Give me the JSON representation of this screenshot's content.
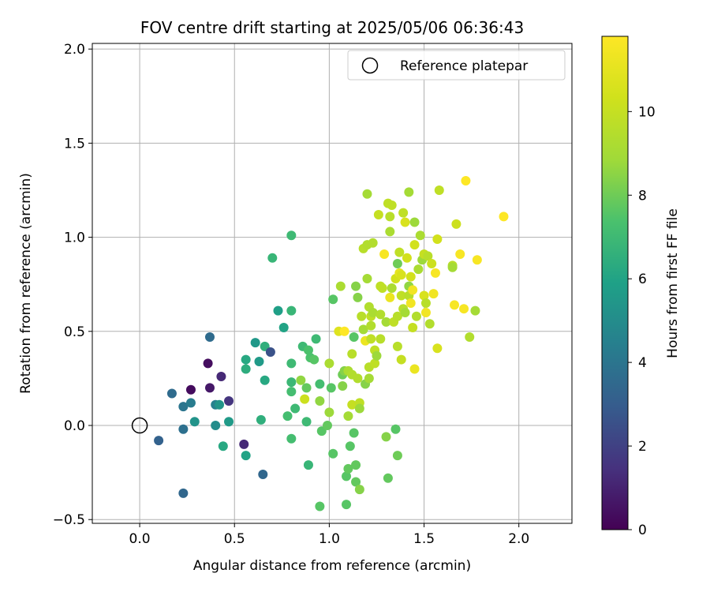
{
  "chart_data": {
    "type": "scatter",
    "title": "FOV centre drift starting at 2025/05/06 06:36:43",
    "xlabel": "Angular distance from reference (arcmin)",
    "ylabel": "Rotation from reference (arcmin)",
    "xlim": [
      -0.25,
      2.28
    ],
    "ylim": [
      -0.52,
      2.03
    ],
    "xticks": [
      "0.0",
      "0.5",
      "1.0",
      "1.5",
      "2.0"
    ],
    "yticks": [
      "−0.5",
      "0.0",
      "0.5",
      "1.0",
      "1.5",
      "2.0"
    ],
    "grid": true,
    "legend": {
      "position": "top-right",
      "label": "Reference platepar"
    },
    "reference_point": {
      "x": 0.0,
      "y": 0.0
    },
    "colorbar": {
      "label": "Hours from first FF file",
      "range": [
        0,
        11.8
      ],
      "ticks": [
        "0",
        "2",
        "4",
        "6",
        "8",
        "10"
      ],
      "colormap": "viridis"
    },
    "points": [
      [
        0.1,
        -0.08,
        3.2
      ],
      [
        0.17,
        0.17,
        3.6
      ],
      [
        0.23,
        0.1,
        4.0
      ],
      [
        0.23,
        -0.02,
        3.8
      ],
      [
        0.23,
        -0.36,
        3.4
      ],
      [
        0.27,
        0.19,
        0.3
      ],
      [
        0.27,
        0.12,
        4.3
      ],
      [
        0.29,
        0.02,
        5.3
      ],
      [
        0.36,
        0.33,
        0.4
      ],
      [
        0.37,
        0.2,
        0.7
      ],
      [
        0.37,
        0.47,
        3.6
      ],
      [
        0.4,
        0.11,
        4.5
      ],
      [
        0.4,
        0.0,
        5.0
      ],
      [
        0.42,
        0.11,
        5.4
      ],
      [
        0.43,
        0.26,
        1.2
      ],
      [
        0.44,
        -0.11,
        6.2
      ],
      [
        0.47,
        0.13,
        1.6
      ],
      [
        0.47,
        0.02,
        5.6
      ],
      [
        0.55,
        -0.1,
        1.2
      ],
      [
        0.56,
        0.35,
        6.2
      ],
      [
        0.56,
        0.3,
        6.4
      ],
      [
        0.56,
        -0.16,
        6.0
      ],
      [
        0.61,
        0.44,
        5.5
      ],
      [
        0.63,
        0.34,
        5.6
      ],
      [
        0.64,
        0.03,
        6.5
      ],
      [
        0.65,
        -0.26,
        3.4
      ],
      [
        0.66,
        0.42,
        6.5
      ],
      [
        0.66,
        0.24,
        6.2
      ],
      [
        0.69,
        0.39,
        2.6
      ],
      [
        0.7,
        0.89,
        6.8
      ],
      [
        0.73,
        0.61,
        5.8
      ],
      [
        0.76,
        0.52,
        6.0
      ],
      [
        0.78,
        0.05,
        7.2
      ],
      [
        0.8,
        1.01,
        7.0
      ],
      [
        0.8,
        0.61,
        6.8
      ],
      [
        0.8,
        0.33,
        7.0
      ],
      [
        0.8,
        0.23,
        6.9
      ],
      [
        0.8,
        0.18,
        7.2
      ],
      [
        0.8,
        -0.07,
        7.2
      ],
      [
        0.82,
        0.09,
        7.0
      ],
      [
        0.85,
        0.24,
        8.6
      ],
      [
        0.86,
        0.42,
        7.0
      ],
      [
        0.87,
        0.14,
        10.2
      ],
      [
        0.88,
        0.02,
        7.0
      ],
      [
        0.88,
        0.2,
        7.8
      ],
      [
        0.89,
        -0.21,
        6.8
      ],
      [
        0.89,
        0.4,
        7.4
      ],
      [
        0.9,
        0.36,
        7.4
      ],
      [
        0.92,
        0.35,
        7.6
      ],
      [
        0.93,
        0.46,
        7.0
      ],
      [
        0.95,
        0.22,
        7.2
      ],
      [
        0.95,
        -0.43,
        7.6
      ],
      [
        0.95,
        0.13,
        8.6
      ],
      [
        0.96,
        -0.03,
        7.6
      ],
      [
        0.99,
        0.0,
        7.8
      ],
      [
        1.0,
        0.33,
        9.2
      ],
      [
        1.0,
        0.07,
        8.8
      ],
      [
        1.01,
        0.2,
        7.6
      ],
      [
        1.02,
        0.67,
        7.6
      ],
      [
        1.02,
        -0.15,
        7.6
      ],
      [
        1.05,
        0.5,
        10.8
      ],
      [
        1.06,
        0.74,
        9.2
      ],
      [
        1.07,
        0.27,
        8.0
      ],
      [
        1.07,
        0.21,
        8.4
      ],
      [
        1.08,
        0.29,
        8.4
      ],
      [
        1.08,
        0.5,
        11.8
      ],
      [
        1.09,
        -0.42,
        7.6
      ],
      [
        1.09,
        -0.27,
        7.6
      ],
      [
        1.1,
        -0.23,
        7.8
      ],
      [
        1.1,
        0.05,
        9.0
      ],
      [
        1.1,
        0.29,
        9.2
      ],
      [
        1.11,
        -0.11,
        7.6
      ],
      [
        1.12,
        0.27,
        9.4
      ],
      [
        1.12,
        0.11,
        10.0
      ],
      [
        1.12,
        0.38,
        9.6
      ],
      [
        1.13,
        0.47,
        7.6
      ],
      [
        1.13,
        -0.04,
        7.6
      ],
      [
        1.14,
        -0.21,
        7.8
      ],
      [
        1.14,
        0.74,
        8.4
      ],
      [
        1.14,
        -0.3,
        7.8
      ],
      [
        1.15,
        0.68,
        8.4
      ],
      [
        1.15,
        0.25,
        9.4
      ],
      [
        1.16,
        0.12,
        9.8
      ],
      [
        1.16,
        0.09,
        8.8
      ],
      [
        1.16,
        -0.34,
        8.4
      ],
      [
        1.17,
        0.58,
        9.6
      ],
      [
        1.18,
        0.51,
        9.0
      ],
      [
        1.18,
        0.94,
        9.6
      ],
      [
        1.19,
        0.45,
        11.2
      ],
      [
        1.19,
        0.22,
        8.4
      ],
      [
        1.2,
        1.23,
        9.0
      ],
      [
        1.2,
        0.78,
        9.0
      ],
      [
        1.2,
        0.96,
        9.4
      ],
      [
        1.21,
        0.25,
        9.0
      ],
      [
        1.21,
        0.31,
        9.6
      ],
      [
        1.21,
        0.63,
        9.4
      ],
      [
        1.22,
        0.53,
        9.4
      ],
      [
        1.22,
        0.46,
        9.8
      ],
      [
        1.22,
        0.58,
        9.8
      ],
      [
        1.23,
        0.97,
        9.4
      ],
      [
        1.23,
        0.6,
        9.2
      ],
      [
        1.24,
        0.4,
        9.8
      ],
      [
        1.24,
        0.33,
        9.8
      ],
      [
        1.25,
        0.37,
        8.8
      ],
      [
        1.26,
        1.12,
        10.0
      ],
      [
        1.27,
        0.74,
        9.8
      ],
      [
        1.27,
        0.59,
        9.4
      ],
      [
        1.27,
        0.46,
        9.6
      ],
      [
        1.28,
        0.73,
        9.8
      ],
      [
        1.29,
        0.91,
        11.6
      ],
      [
        1.3,
        0.55,
        9.0
      ],
      [
        1.3,
        -0.06,
        8.4
      ],
      [
        1.31,
        1.18,
        9.8
      ],
      [
        1.31,
        -0.28,
        7.8
      ],
      [
        1.32,
        1.03,
        9.2
      ],
      [
        1.32,
        1.11,
        9.6
      ],
      [
        1.32,
        0.68,
        11.2
      ],
      [
        1.33,
        0.73,
        9.2
      ],
      [
        1.33,
        1.17,
        9.8
      ],
      [
        1.34,
        0.55,
        9.8
      ],
      [
        1.35,
        -0.02,
        7.6
      ],
      [
        1.35,
        0.78,
        10.4
      ],
      [
        1.36,
        0.86,
        8.0
      ],
      [
        1.36,
        -0.16,
        8.0
      ],
      [
        1.36,
        0.42,
        9.6
      ],
      [
        1.36,
        0.58,
        9.6
      ],
      [
        1.37,
        0.92,
        9.8
      ],
      [
        1.37,
        0.81,
        11.0
      ],
      [
        1.38,
        0.69,
        9.8
      ],
      [
        1.38,
        0.8,
        10.6
      ],
      [
        1.38,
        0.35,
        10.0
      ],
      [
        1.39,
        0.62,
        9.6
      ],
      [
        1.39,
        1.13,
        9.8
      ],
      [
        1.4,
        1.08,
        10.6
      ],
      [
        1.4,
        0.6,
        9.0
      ],
      [
        1.41,
        0.89,
        10.4
      ],
      [
        1.42,
        1.24,
        9.0
      ],
      [
        1.42,
        0.69,
        9.6
      ],
      [
        1.42,
        0.74,
        8.6
      ],
      [
        1.43,
        0.65,
        11.4
      ],
      [
        1.43,
        0.79,
        10.4
      ],
      [
        1.44,
        0.72,
        11.4
      ],
      [
        1.44,
        0.52,
        10.0
      ],
      [
        1.45,
        1.08,
        8.8
      ],
      [
        1.45,
        0.96,
        10.4
      ],
      [
        1.45,
        0.3,
        11.2
      ],
      [
        1.46,
        0.58,
        9.4
      ],
      [
        1.47,
        0.83,
        9.2
      ],
      [
        1.48,
        1.01,
        9.2
      ],
      [
        1.49,
        0.88,
        8.8
      ],
      [
        1.5,
        0.69,
        10.6
      ],
      [
        1.5,
        0.91,
        10.0
      ],
      [
        1.51,
        0.65,
        9.6
      ],
      [
        1.51,
        0.6,
        11.4
      ],
      [
        1.52,
        0.9,
        9.6
      ],
      [
        1.53,
        0.54,
        9.4
      ],
      [
        1.54,
        0.86,
        10.2
      ],
      [
        1.55,
        0.7,
        11.4
      ],
      [
        1.56,
        0.81,
        11.6
      ],
      [
        1.57,
        0.41,
        10.6
      ],
      [
        1.57,
        0.99,
        10.4
      ],
      [
        1.58,
        1.25,
        9.8
      ],
      [
        1.65,
        0.85,
        9.6
      ],
      [
        1.65,
        0.84,
        9.0
      ],
      [
        1.66,
        0.64,
        11.6
      ],
      [
        1.67,
        1.07,
        10.2
      ],
      [
        1.69,
        0.91,
        11.6
      ],
      [
        1.71,
        0.62,
        11.6
      ],
      [
        1.72,
        1.3,
        11.8
      ],
      [
        1.74,
        0.47,
        9.4
      ],
      [
        1.77,
        0.61,
        9.0
      ],
      [
        1.78,
        0.88,
        11.6
      ],
      [
        1.92,
        1.11,
        11.8
      ]
    ]
  }
}
